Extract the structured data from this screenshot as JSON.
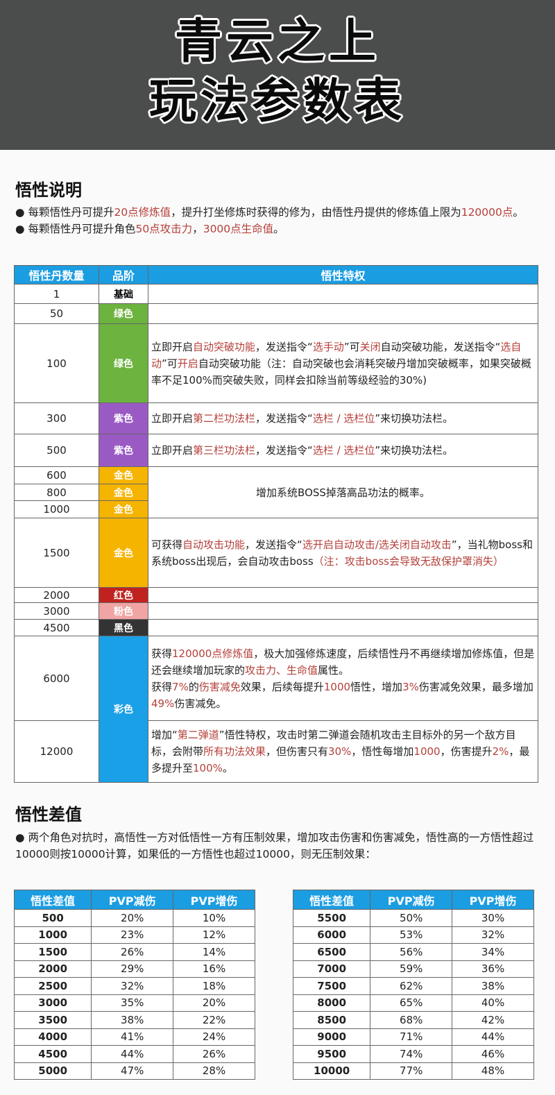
{
  "header": {
    "title_line1": "青云之上",
    "title_line2": "玩法参数表"
  },
  "section1": {
    "title": "悟性说明",
    "bullets": [
      [
        {
          "t": "● 每颗悟性丹可提升"
        },
        {
          "t": "20点修炼值",
          "hl": true
        },
        {
          "t": "，提升打坐修炼时获得的修为，由悟性丹提供的修炼值上限为"
        },
        {
          "t": "120000点",
          "hl": true
        },
        {
          "t": "。"
        }
      ],
      [
        {
          "t": "● 每颗悟性丹可提升角色"
        },
        {
          "t": "50点攻击力",
          "hl": true
        },
        {
          "t": "，"
        },
        {
          "t": "3000点生命值",
          "hl": true
        },
        {
          "t": "。"
        }
      ]
    ]
  },
  "colors": {
    "header_blue": "#1b9de2",
    "highlight": "#b4403a"
  },
  "main_table": {
    "headers": [
      "悟性丹数量",
      "品阶",
      "悟性特权"
    ],
    "rows": [
      {
        "qty": "1",
        "grade": "基础",
        "color": "#ffffff",
        "dark": true,
        "h": 28,
        "desc": []
      },
      {
        "qty": "50",
        "grade": "绿色",
        "color": "#6db33f",
        "h": 29,
        "desc": []
      },
      {
        "qty": "100",
        "grade": "绿色",
        "color": "#6db33f",
        "h": 114,
        "desc": [
          {
            "t": "立即开启"
          },
          {
            "t": "自动突破功能",
            "hl": true
          },
          {
            "t": "，发送指令“"
          },
          {
            "t": "选手动",
            "hl": true
          },
          {
            "t": "”可"
          },
          {
            "t": "关闭",
            "hl": true
          },
          {
            "t": "自动突破功能，发送指令“"
          },
          {
            "t": "选自动",
            "hl": true
          },
          {
            "t": "”可"
          },
          {
            "t": "开启",
            "hl": true
          },
          {
            "t": "自动突破功能（注：自动突破也会消耗突破丹增加突破概率，如果突破概率不足100%而突破失败，同样会扣除当前等级经验的30%)"
          }
        ]
      },
      {
        "qty": "300",
        "grade": "紫色",
        "color": "#9a5ac4",
        "h": 45,
        "desc": [
          {
            "t": "立即开启"
          },
          {
            "t": "第二栏功法栏",
            "hl": true
          },
          {
            "t": "，发送指令“"
          },
          {
            "t": "选栏 / 选栏位",
            "hl": true
          },
          {
            "t": "”来切换功法栏。"
          }
        ]
      },
      {
        "qty": "500",
        "grade": "紫色",
        "color": "#9a5ac4",
        "h": 47,
        "desc": [
          {
            "t": "立即开启"
          },
          {
            "t": "第三栏功法栏",
            "hl": true
          },
          {
            "t": "，发送指令“"
          },
          {
            "t": "选栏 / 选栏位",
            "hl": true
          },
          {
            "t": "”来切换功法栏。"
          }
        ]
      },
      {
        "qty": "600",
        "grade": "金色",
        "color": "#f5b400",
        "h": 25,
        "span": 3,
        "center": true,
        "desc": [
          {
            "t": "增加系统BOSS掉落高品功法的概率。"
          }
        ]
      },
      {
        "qty": "800",
        "grade": "金色",
        "color": "#f5b400",
        "h": 24,
        "merged": true
      },
      {
        "qty": "1000",
        "grade": "金色",
        "color": "#f5b400",
        "h": 25,
        "merged": true
      },
      {
        "qty": "1500",
        "grade": "金色",
        "color": "#f5b400",
        "h": 100,
        "desc": [
          {
            "t": "可获得"
          },
          {
            "t": "自动攻击功能",
            "hl": true
          },
          {
            "t": "，发送指令“"
          },
          {
            "t": "选开启自动攻击/选关闭自动攻击",
            "hl": true
          },
          {
            "t": "”，当礼物boss和系统boss出现后，会自动攻击boss"
          },
          {
            "t": "（注：攻击boss会导致无敌保护罩消失）",
            "hl": true
          }
        ]
      },
      {
        "qty": "2000",
        "grade": "红色",
        "color": "#c0231f",
        "h": 22,
        "desc": []
      },
      {
        "qty": "3000",
        "grade": "粉色",
        "color": "#f0a4a4",
        "h": 24,
        "desc": []
      },
      {
        "qty": "4500",
        "grade": "黑色",
        "color": "#333333",
        "h": 24,
        "desc": []
      },
      {
        "qty": "6000",
        "grade": "彩色",
        "color": "#1aa0e6",
        "h": 122,
        "gspan": 2,
        "desc": [
          {
            "t": "获得"
          },
          {
            "t": "120000点修炼值",
            "hl": true
          },
          {
            "t": "，极大加强修炼速度，后续悟性丹不再继续增加修炼值，但是还会继续增加玩家的"
          },
          {
            "t": "攻击力、生命值",
            "hl": true
          },
          {
            "t": "属性。"
          },
          {
            "br": true
          },
          {
            "t": "获得"
          },
          {
            "t": "7%",
            "hl": true
          },
          {
            "t": "的"
          },
          {
            "t": "伤害减免",
            "hl": true
          },
          {
            "t": "效果，后续每提升"
          },
          {
            "t": "1000",
            "hl": true
          },
          {
            "t": "悟性，增加"
          },
          {
            "t": "3%",
            "hl": true
          },
          {
            "t": "伤害减免效果，最多增加"
          },
          {
            "t": "49%",
            "hl": true
          },
          {
            "t": "伤害减免。"
          }
        ]
      },
      {
        "qty": "12000",
        "gmerged": true,
        "h": 89,
        "desc": [
          {
            "t": "增加“"
          },
          {
            "t": "第二弹道",
            "hl": true
          },
          {
            "t": "”悟性特权，攻击时第二弹道会随机攻击主目标外的另一个敌方目标，会附带"
          },
          {
            "t": "所有功法效果",
            "hl": true
          },
          {
            "t": "，但伤害只有"
          },
          {
            "t": "30%",
            "hl": true
          },
          {
            "t": "，悟性每增加"
          },
          {
            "t": "1000",
            "hl": true
          },
          {
            "t": "，伤害提升"
          },
          {
            "t": "2%",
            "hl": true
          },
          {
            "t": "，最多提升至"
          },
          {
            "t": "100%",
            "hl": true
          },
          {
            "t": "。"
          }
        ]
      }
    ]
  },
  "section2": {
    "title": "悟性差值",
    "bullet": "● 两个角色对抗时，高悟性一方对低悟性一方有压制效果，增加攻击伤害和伤害减免，悟性高的一方悟性超过10000则按10000计算，如果低的一方悟性也超过10000，则无压制效果："
  },
  "pvp_tables": [
    {
      "headers": [
        "悟性差值",
        "PVP减伤",
        "PVP增伤"
      ],
      "rows": [
        [
          "500",
          "20%",
          "10%"
        ],
        [
          "1000",
          "23%",
          "12%"
        ],
        [
          "1500",
          "26%",
          "14%"
        ],
        [
          "2000",
          "29%",
          "16%"
        ],
        [
          "2500",
          "32%",
          "18%"
        ],
        [
          "3000",
          "35%",
          "20%"
        ],
        [
          "3500",
          "38%",
          "22%"
        ],
        [
          "4000",
          "41%",
          "24%"
        ],
        [
          "4500",
          "44%",
          "26%"
        ],
        [
          "5000",
          "47%",
          "28%"
        ]
      ]
    },
    {
      "headers": [
        "悟性差值",
        "PVP减伤",
        "PVP增伤"
      ],
      "rows": [
        [
          "5500",
          "50%",
          "30%"
        ],
        [
          "6000",
          "53%",
          "32%"
        ],
        [
          "6500",
          "56%",
          "34%"
        ],
        [
          "7000",
          "59%",
          "36%"
        ],
        [
          "7500",
          "62%",
          "38%"
        ],
        [
          "8000",
          "65%",
          "40%"
        ],
        [
          "8500",
          "68%",
          "42%"
        ],
        [
          "9000",
          "71%",
          "44%"
        ],
        [
          "9500",
          "74%",
          "46%"
        ],
        [
          "10000",
          "77%",
          "48%"
        ]
      ]
    }
  ]
}
